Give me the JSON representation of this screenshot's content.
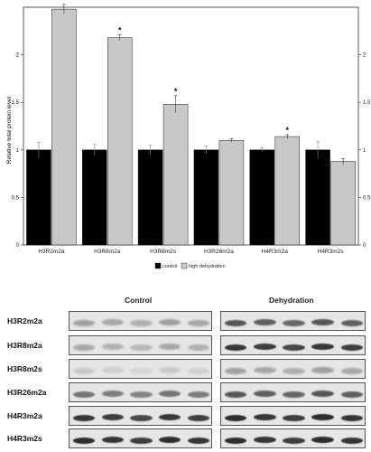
{
  "chart_data": {
    "type": "bar",
    "ylabel": "Relative total protein level",
    "ylim": [
      0,
      2.5
    ],
    "yticks": [
      "0",
      "0.5",
      "1",
      "1.5",
      "2"
    ],
    "categories": [
      "H3R2m2a",
      "H3R8m2a",
      "H3R8m2s",
      "H3R26m2a",
      "H4R3m2a",
      "H4R3m2s"
    ],
    "series": [
      {
        "name": "control",
        "color": "#000000",
        "values": [
          1.0,
          1.0,
          1.0,
          1.0,
          1.0,
          1.0
        ],
        "errors": [
          0.08,
          0.06,
          0.05,
          0.04,
          0.02,
          0.09
        ]
      },
      {
        "name": "high dehydration",
        "color": "#c8c8c8",
        "values": [
          2.48,
          2.18,
          1.48,
          1.1,
          1.14,
          0.88
        ],
        "errors": [
          0.05,
          0.03,
          0.09,
          0.02,
          0.02,
          0.03
        ]
      }
    ],
    "significance": [
      "*",
      "*",
      "*",
      "",
      "*",
      ""
    ],
    "legend": "bottom-center"
  },
  "blots": {
    "control_title": "Control",
    "dehydration_title": "Dehydration",
    "rows": [
      {
        "label": "H3R2m2a",
        "control_intensity": 0.35,
        "dehydration_intensity": 0.7
      },
      {
        "label": "H3R8m2a",
        "control_intensity": 0.3,
        "dehydration_intensity": 0.85
      },
      {
        "label": "H3R8m2s",
        "control_intensity": 0.15,
        "dehydration_intensity": 0.35
      },
      {
        "label": "H3R26m2a",
        "control_intensity": 0.55,
        "dehydration_intensity": 0.7
      },
      {
        "label": "H4R3m2a",
        "control_intensity": 0.85,
        "dehydration_intensity": 0.9
      },
      {
        "label": "H4R3m2s",
        "control_intensity": 0.9,
        "dehydration_intensity": 0.9
      }
    ],
    "lanes_per_group": 5,
    "colors": {
      "band": "#1a1a1a",
      "background": "#e6e6e6"
    }
  }
}
